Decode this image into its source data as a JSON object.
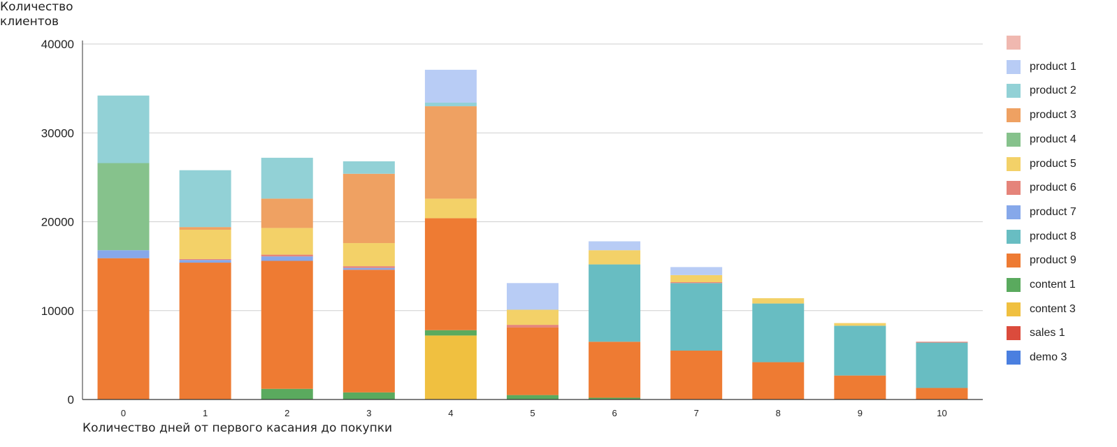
{
  "chart_data": {
    "type": "bar",
    "stacked": true,
    "ylabel_lines": [
      "Количество",
      "клиентов"
    ],
    "xlabel": "Количество дней от первого касания до покупки",
    "categories": [
      "0",
      "1",
      "2",
      "3",
      "4",
      "5",
      "6",
      "7",
      "8",
      "9",
      "10"
    ],
    "ylim": [
      0,
      40000
    ],
    "yticks": [
      "0",
      "10000",
      "20000",
      "30000",
      "40000"
    ],
    "grid": true,
    "legend_position": "right",
    "series": [
      {
        "name": "demo 3",
        "color": "#4a7fe0",
        "values": [
          0,
          0,
          0,
          0,
          0,
          0,
          0,
          0,
          0,
          0,
          0
        ]
      },
      {
        "name": "sales 1",
        "color": "#db4b3c",
        "values": [
          0,
          0,
          0,
          0,
          0,
          0,
          0,
          0,
          0,
          0,
          0
        ]
      },
      {
        "name": "content 3",
        "color": "#f0c040",
        "values": [
          0,
          0,
          0,
          0,
          7200,
          0,
          0,
          0,
          0,
          0,
          0
        ]
      },
      {
        "name": "content 1",
        "color": "#5aaa5e",
        "values": [
          0,
          0,
          1200,
          800,
          600,
          500,
          200,
          0,
          0,
          0,
          0
        ]
      },
      {
        "name": "product 9",
        "color": "#ee7b33",
        "values": [
          15900,
          15400,
          14400,
          13800,
          12600,
          7600,
          6300,
          5500,
          4200,
          2700,
          1300
        ]
      },
      {
        "name": "product 8",
        "color": "#68bdc2",
        "values": [
          0,
          0,
          0,
          0,
          0,
          0,
          8700,
          7600,
          6600,
          5600,
          5100
        ]
      },
      {
        "name": "product 7",
        "color": "#86a8ea",
        "values": [
          900,
          300,
          500,
          200,
          0,
          0,
          0,
          0,
          0,
          0,
          0
        ]
      },
      {
        "name": "product 6",
        "color": "#e5847a",
        "values": [
          0,
          100,
          200,
          200,
          0,
          300,
          0,
          100,
          0,
          0,
          100
        ]
      },
      {
        "name": "product 5",
        "color": "#f3d168",
        "values": [
          0,
          3300,
          3000,
          2600,
          2200,
          1700,
          1600,
          800,
          600,
          300,
          0
        ]
      },
      {
        "name": "product 4",
        "color": "#86c28c",
        "values": [
          9800,
          0,
          0,
          0,
          0,
          0,
          0,
          0,
          0,
          0,
          0
        ]
      },
      {
        "name": "product 3",
        "color": "#efa162",
        "values": [
          0,
          300,
          3300,
          7800,
          10400,
          0,
          0,
          0,
          0,
          0,
          0
        ]
      },
      {
        "name": "product 2",
        "color": "#92d1d6",
        "values": [
          7600,
          6400,
          4600,
          1400,
          400,
          0,
          0,
          0,
          0,
          0,
          0
        ]
      },
      {
        "name": "product 1",
        "color": "#b8ccf5",
        "values": [
          0,
          0,
          0,
          0,
          3700,
          3000,
          1000,
          900,
          0,
          0,
          0
        ]
      },
      {
        "name": "",
        "color": "#f0b8b0",
        "values": [
          0,
          0,
          0,
          0,
          0,
          0,
          0,
          0,
          0,
          0,
          0
        ]
      }
    ]
  },
  "legend": [
    {
      "name": "",
      "color": "#f0b8b0"
    },
    {
      "name": "product 1",
      "color": "#b8ccf5"
    },
    {
      "name": "product 2",
      "color": "#92d1d6"
    },
    {
      "name": "product 3",
      "color": "#efa162"
    },
    {
      "name": "product 4",
      "color": "#86c28c"
    },
    {
      "name": "product 5",
      "color": "#f3d168"
    },
    {
      "name": "product 6",
      "color": "#e5847a"
    },
    {
      "name": "product 7",
      "color": "#86a8ea"
    },
    {
      "name": "product 8",
      "color": "#68bdc2"
    },
    {
      "name": "product 9",
      "color": "#ee7b33"
    },
    {
      "name": "content 1",
      "color": "#5aaa5e"
    },
    {
      "name": "content 3",
      "color": "#f0c040"
    },
    {
      "name": "sales 1",
      "color": "#db4b3c"
    },
    {
      "name": "demo 3",
      "color": "#4a7fe0"
    }
  ]
}
